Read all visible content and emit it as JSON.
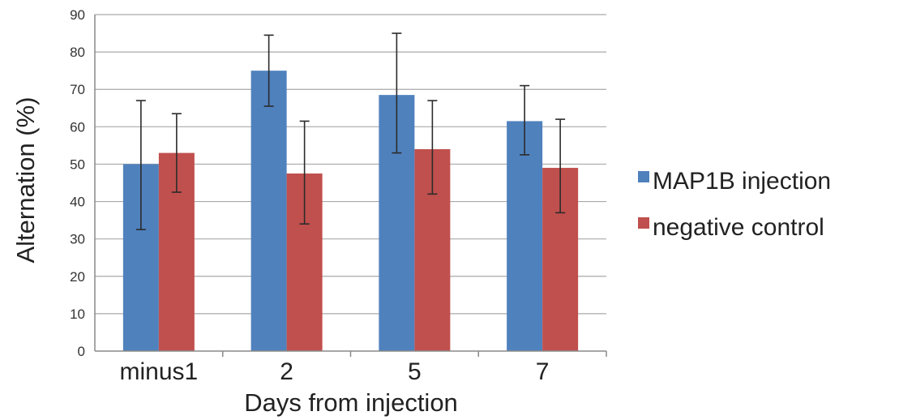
{
  "chart_data": {
    "type": "bar",
    "categories": [
      "minus1",
      "2",
      "5",
      "7"
    ],
    "series": [
      {
        "name": "MAP1B injection",
        "color": "#4f81bd",
        "values": [
          50,
          75,
          68.5,
          61.5
        ],
        "err_low": [
          32.5,
          65.5,
          53,
          52.5
        ],
        "err_high": [
          67,
          84.5,
          85,
          71
        ]
      },
      {
        "name": "negative control",
        "color": "#c0504d",
        "values": [
          53,
          47.5,
          54,
          49
        ],
        "err_low": [
          42.5,
          34,
          42,
          37
        ],
        "err_high": [
          63.5,
          61.5,
          67,
          62
        ]
      }
    ],
    "title": "",
    "xlabel": "Days from injection",
    "ylabel": "Alternation (%)",
    "ylim": [
      0,
      90
    ],
    "yticks": [
      0,
      10,
      20,
      30,
      40,
      50,
      60,
      70,
      80,
      90
    ],
    "grid": true,
    "legend": "right"
  }
}
